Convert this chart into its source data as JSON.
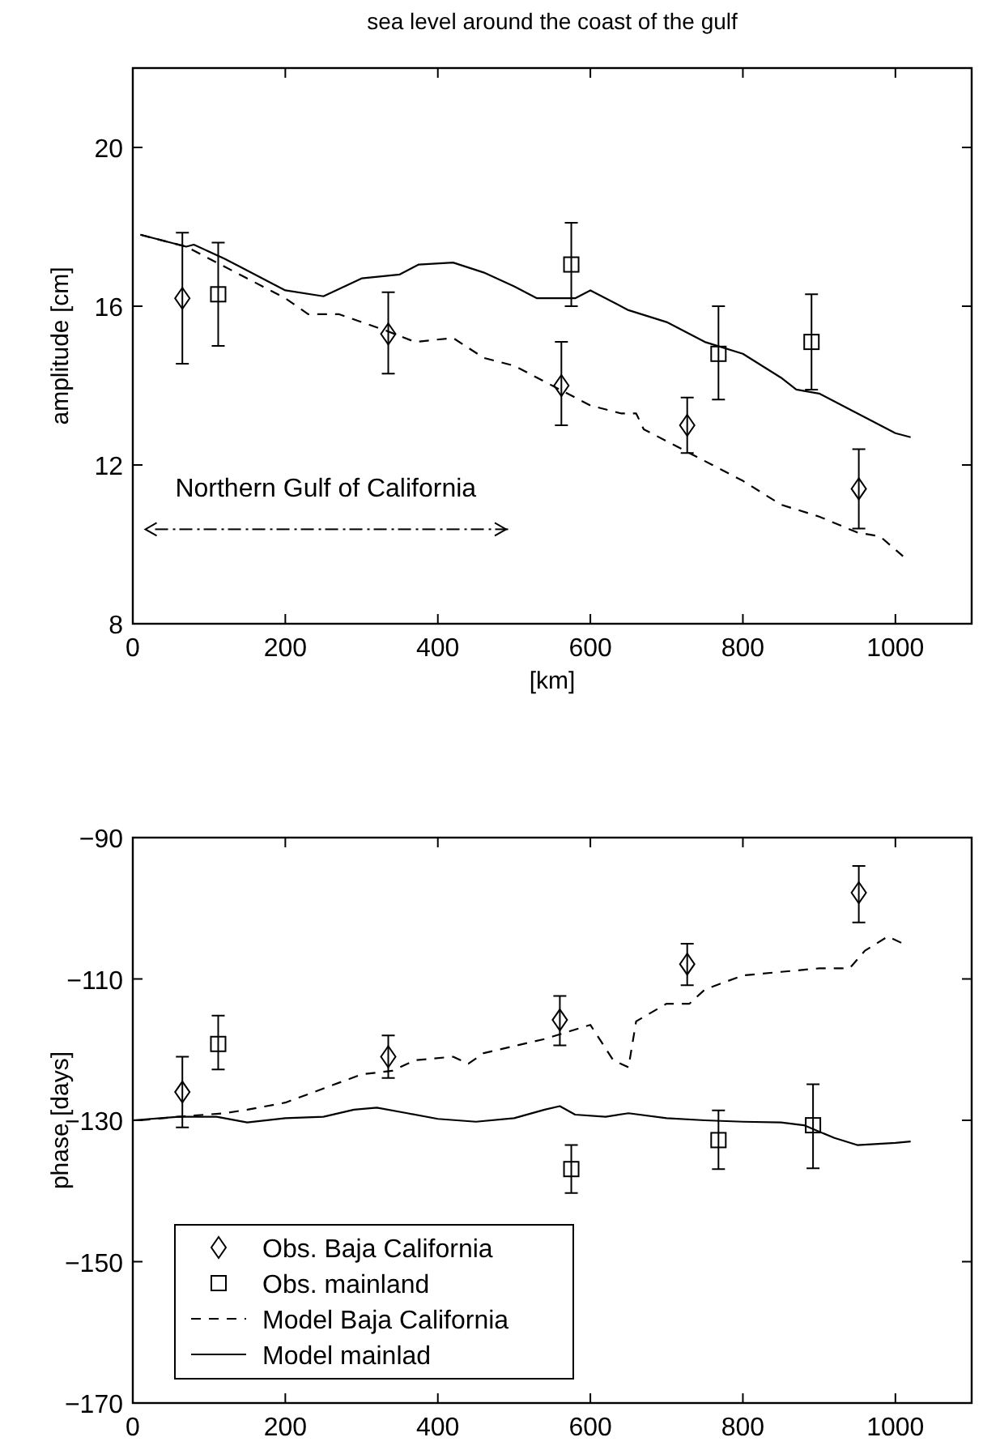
{
  "chart_data": [
    {
      "type": "line",
      "title": "sea level around the coast of the gulf",
      "xlabel": "[km]",
      "ylabel": "amplitude [cm]",
      "xlim": [
        0,
        1100
      ],
      "ylim": [
        8,
        22
      ],
      "xticks": [
        0,
        200,
        400,
        600,
        800,
        1000
      ],
      "yticks": [
        8,
        12,
        16,
        20
      ],
      "grid": false,
      "legend": false,
      "annotations": [
        "Northern Gulf of California"
      ],
      "series": [
        {
          "type": "scatter",
          "marker": "diamond",
          "line_style": "none",
          "color": "#000000",
          "x": [
            65,
            335,
            562,
            727,
            952
          ],
          "values": [
            16.2,
            15.3,
            14.0,
            13.0,
            11.4
          ],
          "errors": [
            [
              14.55,
              17.85
            ],
            [
              14.3,
              16.35
            ],
            [
              13.0,
              15.1
            ],
            [
              12.3,
              13.7
            ],
            [
              10.4,
              12.4
            ]
          ]
        },
        {
          "type": "scatter",
          "marker": "square",
          "line_style": "none",
          "color": "#000000",
          "x": [
            112,
            575,
            768,
            890
          ],
          "values": [
            16.3,
            17.05,
            14.8,
            15.1
          ],
          "errors": [
            [
              15.0,
              17.6
            ],
            [
              16.0,
              18.1
            ],
            [
              13.65,
              16.0
            ],
            [
              13.9,
              16.3
            ]
          ]
        },
        {
          "marker": "none",
          "line_style": "dashed",
          "color": "#000000",
          "x": [
            10,
            70,
            120,
            170,
            200,
            230,
            270,
            330,
            370,
            420,
            460,
            500,
            560,
            600,
            640,
            660,
            670,
            720,
            760,
            800,
            850,
            900,
            950,
            980,
            1010
          ],
          "values": [
            17.8,
            17.5,
            17.0,
            16.5,
            16.2,
            15.8,
            15.8,
            15.4,
            15.1,
            15.2,
            14.7,
            14.5,
            13.9,
            13.5,
            13.3,
            13.3,
            12.9,
            12.4,
            12.0,
            11.6,
            11.0,
            10.7,
            10.3,
            10.2,
            9.7
          ]
        },
        {
          "marker": "none",
          "line_style": "solid",
          "color": "#000000",
          "x": [
            10,
            70,
            80,
            120,
            140,
            200,
            250,
            300,
            350,
            375,
            420,
            460,
            500,
            530,
            580,
            600,
            650,
            700,
            750,
            800,
            850,
            870,
            900,
            950,
            1000,
            1020
          ],
          "values": [
            17.8,
            17.5,
            17.55,
            17.2,
            17.0,
            16.4,
            16.25,
            16.7,
            16.8,
            17.05,
            17.1,
            16.85,
            16.5,
            16.2,
            16.2,
            16.4,
            15.9,
            15.6,
            15.1,
            14.8,
            14.2,
            13.9,
            13.8,
            13.3,
            12.8,
            12.7
          ]
        }
      ]
    },
    {
      "type": "line",
      "ylabel": "phase [days]",
      "xlim": [
        0,
        1100
      ],
      "ylim": [
        -170,
        -90
      ],
      "xticks": [
        0,
        200,
        400,
        600,
        800,
        1000
      ],
      "yticks": [
        {
          "value": -170,
          "label": "−170"
        },
        {
          "value": -150,
          "label": "−150"
        },
        {
          "value": -130,
          "label": "−130"
        },
        {
          "value": -110,
          "label": "−110"
        },
        {
          "value": -90,
          "label": "−90"
        }
      ],
      "grid": false,
      "legend": "bottom left",
      "series": [
        {
          "name": "Obs. Baja California",
          "type": "scatter",
          "marker": "diamond",
          "line_style": "none",
          "color": "#000000",
          "x": [
            65,
            335,
            560,
            727,
            952
          ],
          "values": [
            -126,
            -121,
            -115.8,
            -107.9,
            -97.8
          ],
          "errors": [
            [
              -131,
              -121
            ],
            [
              -124,
              -118
            ],
            [
              -119.4,
              -112.4
            ],
            [
              -110.9,
              -105
            ],
            [
              -102,
              -94
            ]
          ]
        },
        {
          "name": "Obs. mainland",
          "type": "scatter",
          "marker": "square",
          "line_style": "none",
          "color": "#000000",
          "x": [
            112,
            575,
            768,
            892
          ],
          "values": [
            -119.2,
            -136.9,
            -132.8,
            -130.7
          ],
          "errors": [
            [
              -122.8,
              -115.2
            ],
            [
              -140.3,
              -133.5
            ],
            [
              -136.9,
              -128.6
            ],
            [
              -136.8,
              -124.9
            ]
          ]
        },
        {
          "name": "Model Baja California",
          "marker": "none",
          "line_style": "dashed",
          "color": "#000000",
          "x": [
            10,
            60,
            120,
            150,
            200,
            250,
            300,
            340,
            370,
            420,
            440,
            460,
            500,
            540,
            570,
            600,
            630,
            650,
            660,
            700,
            730,
            750,
            800,
            850,
            900,
            940,
            960,
            990,
            1010
          ],
          "values": [
            -130,
            -129.5,
            -129,
            -128.5,
            -127.5,
            -125.5,
            -123.5,
            -123,
            -121.5,
            -121,
            -122,
            -120.5,
            -119.5,
            -118.5,
            -117.5,
            -116.5,
            -121.5,
            -122.5,
            -116,
            -113.5,
            -113.5,
            -111.5,
            -109.5,
            -109,
            -108.5,
            -108.5,
            -106,
            -104,
            -105
          ]
        },
        {
          "name": "Model mainlad",
          "marker": "none",
          "line_style": "solid",
          "color": "#000000",
          "x": [
            0,
            60,
            110,
            150,
            200,
            250,
            290,
            320,
            360,
            400,
            450,
            500,
            540,
            560,
            580,
            620,
            650,
            700,
            750,
            800,
            850,
            880,
            920,
            950,
            1000,
            1020
          ],
          "values": [
            -130,
            -129.5,
            -129.5,
            -130.3,
            -129.7,
            -129.5,
            -128.5,
            -128.2,
            -129,
            -129.8,
            -130.2,
            -129.7,
            -128.5,
            -128,
            -129.2,
            -129.5,
            -129,
            -129.7,
            -130,
            -130.2,
            -130.3,
            -130.7,
            -132.5,
            -133.5,
            -133.2,
            -133
          ]
        }
      ]
    }
  ]
}
